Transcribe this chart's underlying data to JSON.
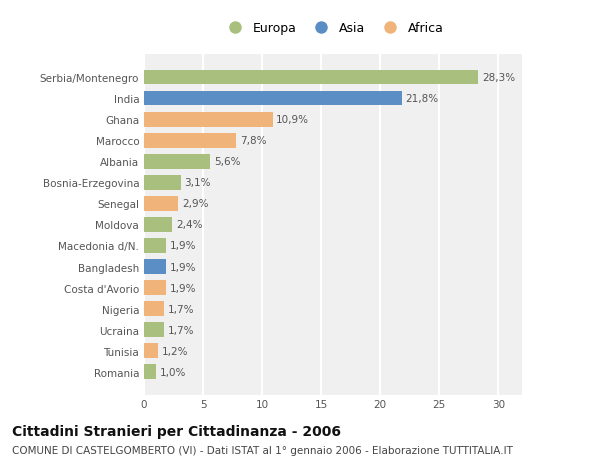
{
  "categories": [
    "Serbia/Montenegro",
    "India",
    "Ghana",
    "Marocco",
    "Albania",
    "Bosnia-Erzegovina",
    "Senegal",
    "Moldova",
    "Macedonia d/N.",
    "Bangladesh",
    "Costa d'Avorio",
    "Nigeria",
    "Ucraina",
    "Tunisia",
    "Romania"
  ],
  "values": [
    28.3,
    21.8,
    10.9,
    7.8,
    5.6,
    3.1,
    2.9,
    2.4,
    1.9,
    1.9,
    1.9,
    1.7,
    1.7,
    1.2,
    1.0
  ],
  "labels": [
    "28,3%",
    "21,8%",
    "10,9%",
    "7,8%",
    "5,6%",
    "3,1%",
    "2,9%",
    "2,4%",
    "1,9%",
    "1,9%",
    "1,9%",
    "1,7%",
    "1,7%",
    "1,2%",
    "1,0%"
  ],
  "continents": [
    "Europa",
    "Asia",
    "Africa",
    "Africa",
    "Europa",
    "Europa",
    "Africa",
    "Europa",
    "Europa",
    "Asia",
    "Africa",
    "Africa",
    "Europa",
    "Africa",
    "Europa"
  ],
  "colors": {
    "Europa": "#a8bf7e",
    "Asia": "#5b8ec4",
    "Africa": "#f0b47a"
  },
  "xlim": [
    0,
    32
  ],
  "xticks": [
    0,
    5,
    10,
    15,
    20,
    25,
    30
  ],
  "title": "Cittadini Stranieri per Cittadinanza - 2006",
  "subtitle": "COMUNE DI CASTELGOMBERTO (VI) - Dati ISTAT al 1° gennaio 2006 - Elaborazione TUTTITALIA.IT",
  "bg_color": "#ffffff",
  "plot_bg_color": "#f0f0f0",
  "grid_color": "#ffffff",
  "bar_height": 0.7,
  "title_fontsize": 10,
  "subtitle_fontsize": 7.5,
  "tick_fontsize": 7.5,
  "label_fontsize": 7.5
}
